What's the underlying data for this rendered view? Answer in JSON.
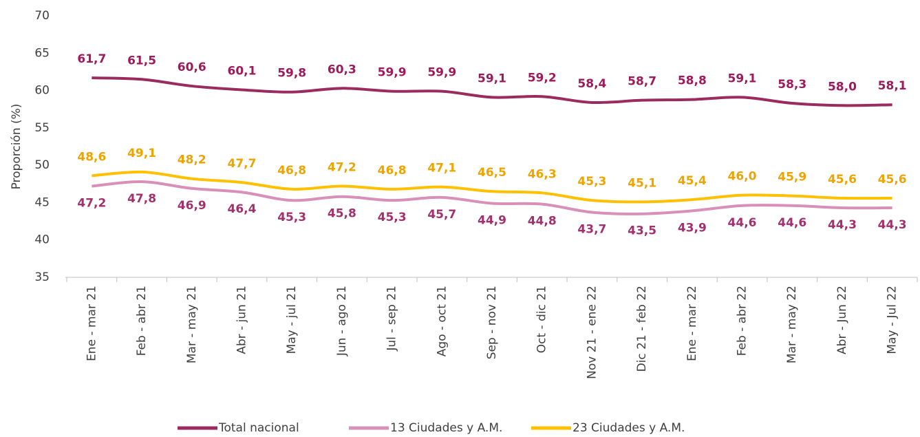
{
  "chart_data": {
    "type": "line",
    "y_label": "Proporción (%)",
    "categories": [
      "Ene - mar 21",
      "Feb - abr 21",
      "Mar - may 21",
      "Abr - jun 21",
      "May - jul 21",
      "Jun - ago 21",
      "Jul - sep 21",
      "Ago - oct 21",
      "Sep - nov 21",
      "Oct - dic 21",
      "Nov 21 - ene 22",
      "Dic 21 - feb 22",
      "Ene - mar 22",
      "Feb - abr 22",
      "Mar - may 22",
      "Abr - Jun 22",
      "May - Jul 22"
    ],
    "series": [
      {
        "name": "Total nacional",
        "color": "#9b2a5f",
        "label_color": "#9e1a5b",
        "label_position": "above",
        "values": [
          61.7,
          61.5,
          60.6,
          60.1,
          59.8,
          60.3,
          59.9,
          59.9,
          59.1,
          59.2,
          58.4,
          58.7,
          58.8,
          59.1,
          58.3,
          58.0,
          58.1
        ],
        "value_labels": [
          "61,7",
          "61,5",
          "60,6",
          "60,1",
          "59,8",
          "60,3",
          "59,9",
          "59,9",
          "59,1",
          "59,2",
          "58,4",
          "58,7",
          "58,8",
          "59,1",
          "58,3",
          "58,0",
          "58,1"
        ]
      },
      {
        "name": "13 Ciudades y A.M.",
        "color": "#d88fb8",
        "label_color": "#a2306c",
        "label_position": "below",
        "values": [
          47.2,
          47.8,
          46.9,
          46.4,
          45.3,
          45.8,
          45.3,
          45.7,
          44.9,
          44.8,
          43.7,
          43.5,
          43.9,
          44.6,
          44.6,
          44.3,
          44.3
        ],
        "value_labels": [
          "47,2",
          "47,8",
          "46,9",
          "46,4",
          "45,3",
          "45,8",
          "45,3",
          "45,7",
          "44,9",
          "44,8",
          "43,7",
          "43,5",
          "43,9",
          "44,6",
          "44,6",
          "44,3",
          "44,3"
        ]
      },
      {
        "name": "23 Ciudades y A.M.",
        "color": "#ffc000",
        "label_color": "#eea400",
        "label_position": "above",
        "values": [
          48.6,
          49.1,
          48.2,
          47.7,
          46.8,
          47.2,
          46.8,
          47.1,
          46.5,
          46.3,
          45.3,
          45.1,
          45.4,
          46.0,
          45.9,
          45.6,
          45.6
        ],
        "value_labels": [
          "48,6",
          "49,1",
          "48,2",
          "47,7",
          "46,8",
          "47,2",
          "46,8",
          "47,1",
          "46,5",
          "46,3",
          "45,3",
          "45,1",
          "45,4",
          "46,0",
          "45,9",
          "45,6",
          "45,6"
        ]
      }
    ],
    "ylim": [
      35,
      70
    ],
    "yticks": [
      35,
      40,
      45,
      50,
      55,
      60,
      65,
      70
    ],
    "grid": false
  }
}
